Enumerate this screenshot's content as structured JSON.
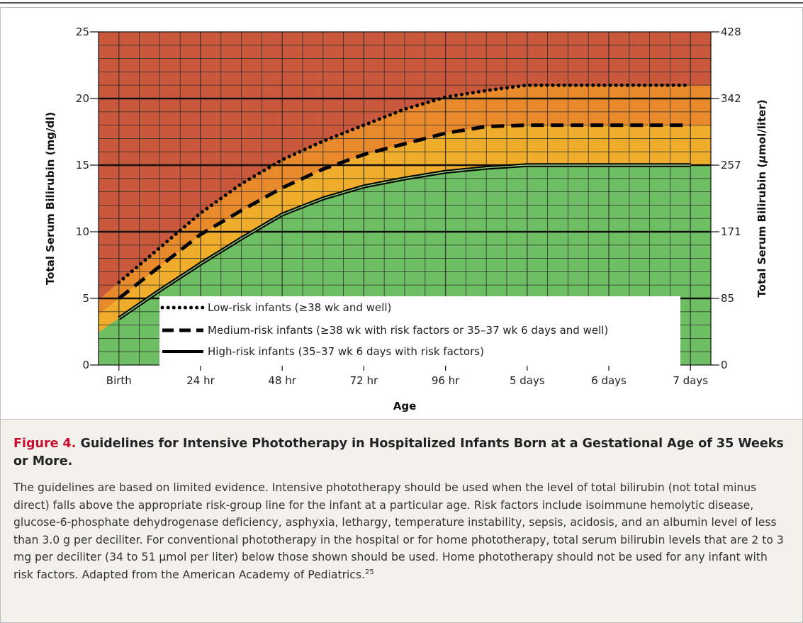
{
  "chart_data": {
    "type": "area",
    "xlabel": "Age",
    "ylabel": "Total Serum Bilirubin (mg/dl)",
    "y2label_prefix": "Total Serum Bilirubin (",
    "y2label_unit_italic": "μ",
    "y2label_suffix": "mol/liter)",
    "x_ticks": [
      "Birth",
      "24 hr",
      "48 hr",
      "72 hr",
      "96 hr",
      "5 days",
      "6 days",
      "7 days"
    ],
    "xlim_hours": [
      -6,
      174
    ],
    "ylim": [
      0,
      25
    ],
    "y_ticks": [
      0,
      5,
      10,
      15,
      20,
      25
    ],
    "y2_ticks": [
      "0",
      "85",
      "171",
      "257",
      "342",
      "428"
    ],
    "grid": true,
    "legend_position": "bottom-center",
    "series": [
      {
        "name": "Low-risk infants (≥38 wk and well)",
        "line_style": "dotted",
        "x_hours": [
          0,
          12,
          24,
          36,
          48,
          60,
          72,
          84,
          96,
          108,
          120,
          168
        ],
        "values": [
          6.2,
          8.8,
          11.4,
          13.6,
          15.4,
          16.8,
          18.0,
          19.2,
          20.1,
          20.6,
          21.0,
          21.0
        ]
      },
      {
        "name": "Medium-risk infants (≥38 wk with risk factors or 35–37 wk 6 days and well)",
        "line_style": "dashed",
        "x_hours": [
          0,
          12,
          24,
          36,
          48,
          60,
          72,
          84,
          96,
          108,
          120,
          168
        ],
        "values": [
          5.0,
          7.4,
          9.8,
          11.6,
          13.3,
          14.7,
          15.8,
          16.6,
          17.4,
          17.9,
          18.0,
          18.0
        ]
      },
      {
        "name": "High-risk infants (35–37 wk 6 days with risk factors)",
        "line_style": "solid",
        "x_hours": [
          0,
          12,
          24,
          36,
          48,
          60,
          72,
          84,
          96,
          108,
          120,
          168
        ],
        "values": [
          3.5,
          5.6,
          7.6,
          9.5,
          11.3,
          12.5,
          13.4,
          14.0,
          14.5,
          14.8,
          15.0,
          15.0
        ]
      }
    ],
    "colors": {
      "above_low": "#c9583d",
      "band_low_medium": "#e88a2c",
      "band_medium_high": "#f0ad2c",
      "below_high": "#6ebf63",
      "grid_major": "#111111",
      "grid_minor": "#2a2a2a"
    }
  },
  "caption": {
    "label": "Figure 4.",
    "title": "Guidelines for Intensive Phototherapy in Hospitalized Infants Born at a Gestational Age of 35 Weeks or More.",
    "body": "The guidelines are based on limited evidence. Intensive phototherapy should be used when the level of total bilirubin (not total minus direct) falls above the appropriate risk-group line for the infant at a particular age. Risk factors include isoimmune hemolytic disease, glucose-6-phosphate dehydrogenase deficiency, asphyxia, lethargy, temperature instability, sepsis, acidosis, and an albumin level of less than 3.0 g per deciliter. For conventional phototherapy in the hospital or for home phototherapy, total serum bilirubin levels that are 2 to 3 mg per deciliter (34 to 51 μmol per liter) below those shown should be used. Home phototherapy should not be used for any infant with risk factors. Adapted from the American Academy of Pediatrics.",
    "reference": "25"
  }
}
